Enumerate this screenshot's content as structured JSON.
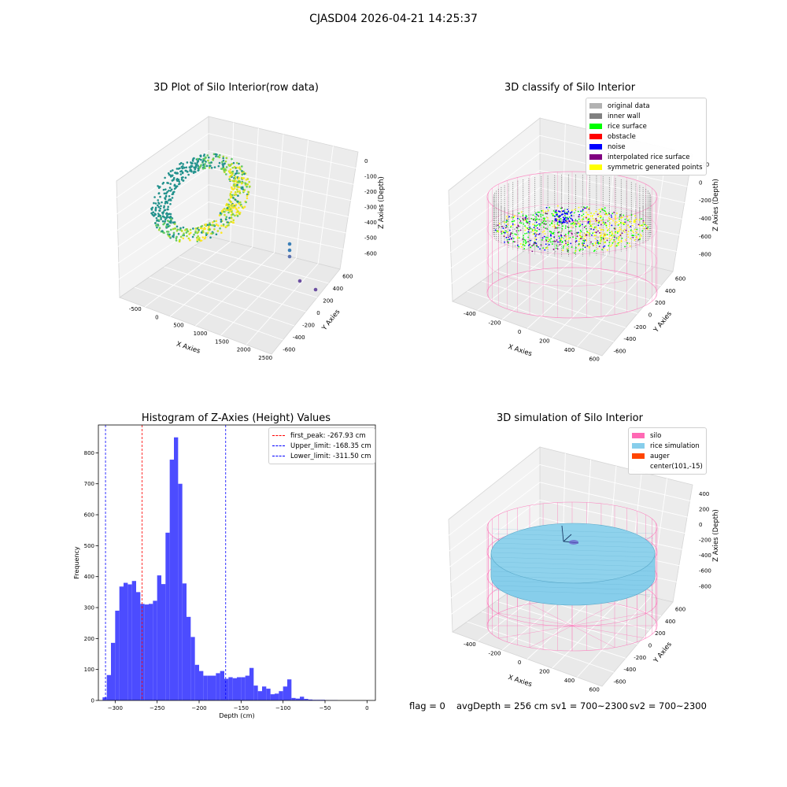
{
  "figure": {
    "suptitle": "CJASD04 2026-04-21 14:25:37",
    "footer": {
      "flag": "flag = 0",
      "avg": "avgDepth = 256 cm",
      "sv1": "sv1 = 700~2300",
      "sv2": "sv2 = 700~2300"
    }
  },
  "colors": {
    "original_data": "#b2b2b2",
    "inner_wall": "#808080",
    "rice_surface": "#00ff00",
    "obstacle": "#ff0000",
    "noise": "#0000ff",
    "interpolated_rice_surface": "#800080",
    "symmetric_generated_points": "#ffff00",
    "silo": "#ff69b4",
    "rice_simulation": "#87ceeb",
    "auger": "#ff4500",
    "histogram_bar": "#4c4cff"
  },
  "chart_data": [
    {
      "type": "scatter",
      "title": "3D Plot of Silo Interior(row data)",
      "projection": "3d",
      "xlabel": "X Axies",
      "ylabel": "Y Axies",
      "zlabel": "Z Axies (Depth)",
      "xticks": [
        "-500",
        "0",
        "500",
        "1000",
        "1500",
        "2000",
        "2500"
      ],
      "yticks": [
        "-600",
        "-400",
        "-200",
        "0",
        "200",
        "400",
        "600"
      ],
      "zticks": [
        "0",
        "-100",
        "-200",
        "-300",
        "-400",
        "-500",
        "-600"
      ],
      "outlier_points": [
        {
          "x": 2050,
          "y": 60,
          "z": -250
        },
        {
          "x": 2050,
          "y": 60,
          "z": -300
        },
        {
          "x": 2050,
          "y": 60,
          "z": -350
        },
        {
          "x": 2150,
          "y": -250,
          "z": -480
        },
        {
          "x": 2300,
          "y": -350,
          "z": -510
        }
      ]
    },
    {
      "type": "scatter",
      "title": "3D classify of Silo Interior",
      "projection": "3d",
      "xlabel": "X Axies",
      "ylabel": "Y Axies",
      "zlabel": "Z Axies (Depth)",
      "xticks": [
        "-400",
        "-200",
        "0",
        "200",
        "400",
        "600"
      ],
      "yticks": [
        "-600",
        "-400",
        "-200",
        "0",
        "200",
        "400",
        "600"
      ],
      "zticks": [
        "200",
        "0",
        "-200",
        "-400",
        "-600",
        "-800"
      ],
      "legend": [
        "original data",
        "inner wall",
        "rice surface",
        "obstacle",
        "noise",
        "interpolated rice surface",
        "symmetric generated points"
      ],
      "legend_position": "top-right"
    },
    {
      "type": "bar",
      "title": "Histogram of Z-Axies (Height) Values",
      "xlabel": "Depth (cm)",
      "ylabel": "Frequency",
      "xlim": [
        -320,
        10
      ],
      "ylim": [
        0,
        890
      ],
      "xticks": [
        -300,
        -250,
        -200,
        -150,
        -100,
        -50,
        0
      ],
      "yticks": [
        0,
        100,
        200,
        300,
        400,
        500,
        600,
        700,
        800
      ],
      "bin_width": 5,
      "bin_starts": [
        -315,
        -310,
        -305,
        -300,
        -295,
        -290,
        -285,
        -280,
        -275,
        -270,
        -265,
        -260,
        -255,
        -250,
        -245,
        -240,
        -235,
        -230,
        -225,
        -220,
        -215,
        -210,
        -205,
        -200,
        -195,
        -190,
        -185,
        -180,
        -175,
        -170,
        -165,
        -160,
        -155,
        -150,
        -145,
        -140,
        -135,
        -130,
        -125,
        -120,
        -115,
        -110,
        -105,
        -100,
        -95,
        -90,
        -85,
        -80,
        -75,
        -70,
        -65,
        -60,
        -55,
        -50,
        -45,
        -40,
        -35,
        -30,
        -25,
        -20,
        -15,
        -10,
        -5,
        0
      ],
      "values": [
        10,
        82,
        186,
        290,
        368,
        380,
        375,
        386,
        350,
        312,
        310,
        312,
        322,
        404,
        376,
        542,
        778,
        850,
        700,
        378,
        270,
        205,
        115,
        95,
        80,
        80,
        80,
        88,
        95,
        70,
        75,
        72,
        75,
        75,
        80,
        105,
        48,
        30,
        45,
        38,
        20,
        22,
        30,
        45,
        68,
        8,
        6,
        12,
        5,
        3,
        2,
        2,
        2,
        1,
        1,
        1,
        0,
        0,
        0,
        0,
        0,
        0,
        0,
        0
      ],
      "legend_position": "top-right",
      "reference_lines": [
        {
          "label": "first_peak: -267.93 cm",
          "x": -267.93,
          "color": "#ff0000"
        },
        {
          "label": "Upper_limit: -168.35 cm",
          "x": -168.35,
          "color": "#0000ff"
        },
        {
          "label": "Lower_limit: -311.50 cm",
          "x": -311.5,
          "color": "#0000ff"
        }
      ]
    },
    {
      "type": "area",
      "title": "3D simulation of Silo Interior",
      "projection": "3d",
      "xlabel": "X Axies",
      "ylabel": "Y Axies",
      "zlabel": "Z Axies (Depth)",
      "xticks": [
        "-400",
        "-200",
        "0",
        "200",
        "400",
        "600"
      ],
      "yticks": [
        "-600",
        "-400",
        "-200",
        "0",
        "200",
        "400",
        "600"
      ],
      "zticks": [
        "400",
        "200",
        "0",
        "-200",
        "-400",
        "-600",
        "-800"
      ],
      "legend": [
        "silo",
        "rice simulation",
        "auger",
        "center(101,-15)"
      ],
      "legend_position": "top-right"
    }
  ]
}
